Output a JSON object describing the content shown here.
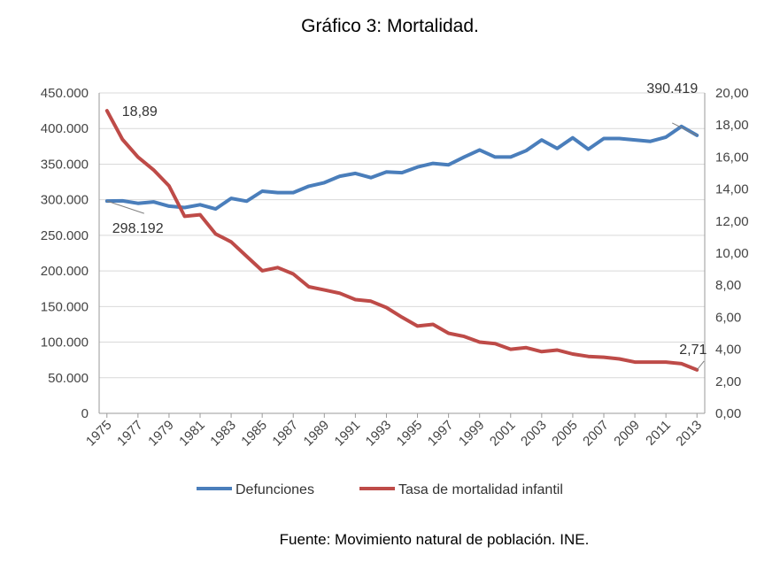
{
  "title": "Gráfico 3: Mortalidad.",
  "source": "Fuente: Movimiento natural de población. INE.",
  "colors": {
    "defunciones": "#4a7ebb",
    "tasa": "#be4b48",
    "grid": "#d9d9d9",
    "axis": "#9a9a9a"
  },
  "chart_data": {
    "type": "line",
    "title": "Gráfico 3: Mortalidad.",
    "x": [
      1975,
      1976,
      1977,
      1978,
      1979,
      1980,
      1981,
      1982,
      1983,
      1984,
      1985,
      1986,
      1987,
      1988,
      1989,
      1990,
      1991,
      1992,
      1993,
      1994,
      1995,
      1996,
      1997,
      1998,
      1999,
      2000,
      2001,
      2002,
      2003,
      2004,
      2005,
      2006,
      2007,
      2008,
      2009,
      2010,
      2011,
      2012,
      2013
    ],
    "x_tick_labels": [
      "1975",
      "1977",
      "1979",
      "1981",
      "1983",
      "1985",
      "1987",
      "1989",
      "1991",
      "1993",
      "1995",
      "1997",
      "1999",
      "2001",
      "2003",
      "2005",
      "2007",
      "2009",
      "2011",
      "2013"
    ],
    "y_left_ticks": [
      "0",
      "50.000",
      "100.000",
      "150.000",
      "200.000",
      "250.000",
      "300.000",
      "350.000",
      "400.000",
      "450.000"
    ],
    "y_right_ticks": [
      "0,00",
      "2,00",
      "4,00",
      "6,00",
      "8,00",
      "10,00",
      "12,00",
      "14,00",
      "16,00",
      "18,00",
      "20,00"
    ],
    "ylim_left": [
      0,
      450000
    ],
    "ylim_right": [
      0,
      20
    ],
    "grid": true,
    "legend_position": "bottom",
    "series": [
      {
        "name": "Defunciones",
        "axis": "left",
        "values": [
          298192,
          298500,
          295000,
          297000,
          291000,
          289000,
          293000,
          287000,
          302000,
          298000,
          312000,
          310000,
          310000,
          319000,
          324000,
          333000,
          337000,
          331000,
          339000,
          338000,
          346000,
          351000,
          349000,
          360000,
          370000,
          360000,
          360000,
          369000,
          384000,
          372000,
          387000,
          371000,
          386000,
          386000,
          384000,
          382000,
          388000,
          403000,
          390419
        ]
      },
      {
        "name": "Tasa de mortalidad infantil",
        "axis": "right",
        "values": [
          18.89,
          17.1,
          16.0,
          15.2,
          14.2,
          12.3,
          12.4,
          11.2,
          10.7,
          9.8,
          8.9,
          9.1,
          8.7,
          7.9,
          7.7,
          7.5,
          7.1,
          7.0,
          6.6,
          6.0,
          5.45,
          5.55,
          5.0,
          4.8,
          4.45,
          4.35,
          4.0,
          4.1,
          3.85,
          3.95,
          3.7,
          3.55,
          3.5,
          3.4,
          3.2,
          3.2,
          3.2,
          3.1,
          2.71
        ]
      }
    ],
    "annotations": {
      "defunciones_first": "298.192",
      "defunciones_last": "390.419",
      "tasa_first": "18,89",
      "tasa_last": "2,71"
    }
  }
}
